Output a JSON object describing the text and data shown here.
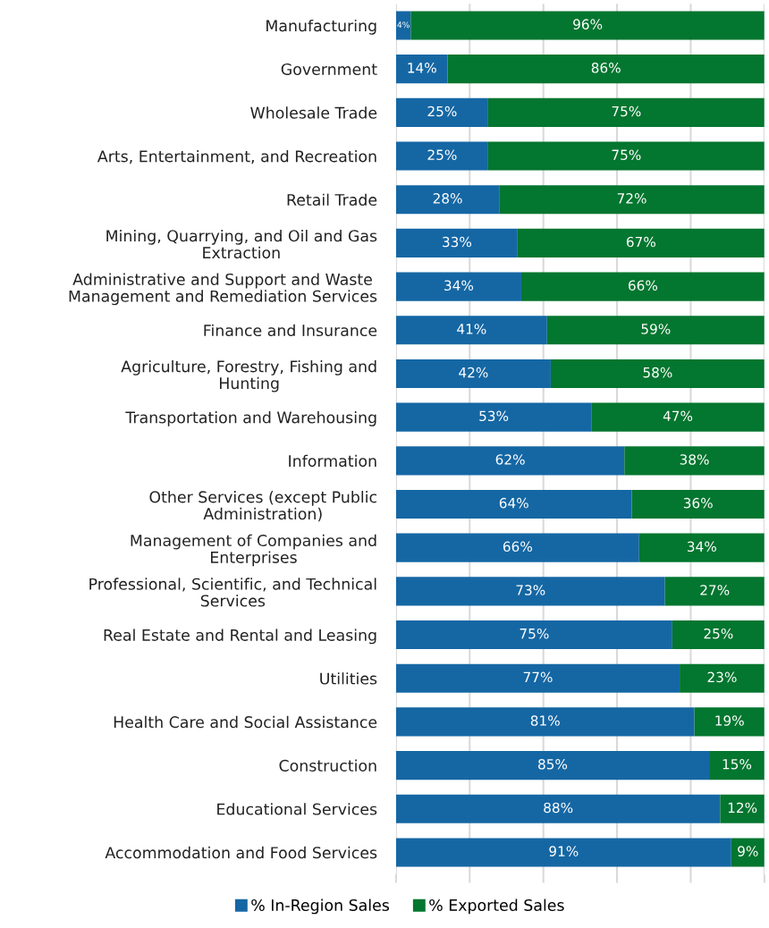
{
  "chart_data": {
    "type": "bar",
    "orientation": "horizontal",
    "stacked": true,
    "categories": [
      "Manufacturing",
      "Government",
      "Wholesale Trade",
      "Arts, Entertainment, and Recreation",
      "Retail Trade",
      "Mining, Quarrying, and Oil and Gas\nExtraction",
      "Administrative and Support and Waste\nManagement and Remediation Services",
      "Finance and Insurance",
      "Agriculture, Forestry, Fishing and\nHunting",
      "Transportation and Warehousing",
      "Information",
      "Other Services (except Public\nAdministration)",
      "Management of Companies and\nEnterprises",
      "Professional, Scientific, and Technical\nServices",
      "Real Estate and Rental and Leasing",
      "Utilities",
      "Health Care and Social Assistance",
      "Construction",
      "Educational Services",
      "Accommodation and Food Services"
    ],
    "series": [
      {
        "name": "% In-Region Sales",
        "color": "#1567a4",
        "values": [
          4,
          14,
          25,
          25,
          28,
          33,
          34,
          41,
          42,
          53,
          62,
          64,
          66,
          73,
          75,
          77,
          81,
          85,
          88,
          91
        ],
        "value_labels": [
          "4%",
          "14%",
          "25%",
          "25%",
          "28%",
          "33%",
          "34%",
          "41%",
          "42%",
          "53%",
          "62%",
          "64%",
          "66%",
          "73%",
          "75%",
          "77%",
          "81%",
          "85%",
          "88%",
          "91%"
        ]
      },
      {
        "name": "% Exported Sales",
        "color": "#03762f",
        "values": [
          96,
          86,
          75,
          75,
          72,
          67,
          66,
          59,
          58,
          47,
          38,
          36,
          34,
          27,
          25,
          23,
          19,
          15,
          12,
          9
        ],
        "value_labels": [
          "96%",
          "86%",
          "75%",
          "75%",
          "72%",
          "67%",
          "66%",
          "59%",
          "58%",
          "47%",
          "38%",
          "36%",
          "34%",
          "27%",
          "25%",
          "23%",
          "19%",
          "15%",
          "12%",
          "9%"
        ]
      }
    ],
    "xlim": [
      0,
      100
    ],
    "xticks": [
      {
        "value": 0,
        "label": null
      },
      {
        "value": 20,
        "label": null
      },
      {
        "value": 40,
        "label": null
      },
      {
        "value": 60,
        "label": null
      },
      {
        "value": 80,
        "label": null
      },
      {
        "value": 100,
        "label": null
      }
    ],
    "tick_labels": "y",
    "grid": "x",
    "legend": "bottom"
  }
}
